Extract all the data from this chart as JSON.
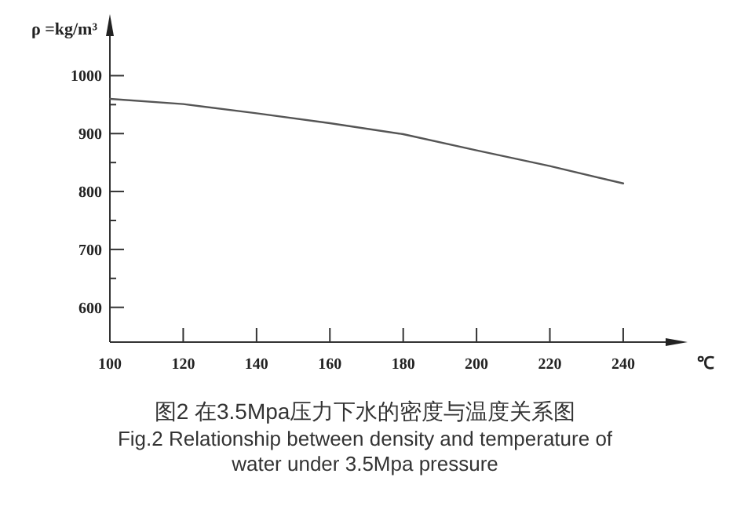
{
  "chart_data": {
    "type": "line",
    "xlabel": "℃",
    "ylabel": "ρ =kg/m³",
    "x": [
      100,
      120,
      140,
      160,
      180,
      200,
      220,
      240
    ],
    "series": [
      {
        "color": "#555555",
        "values": [
          960,
          951,
          935,
          918,
          899,
          871,
          844,
          814
        ]
      }
    ],
    "xlim": [
      100,
      255
    ],
    "ylim": [
      540,
      1090
    ],
    "xticks": [
      100,
      120,
      140,
      160,
      180,
      200,
      220,
      240
    ],
    "yticks": [
      600,
      {
        "value": 650,
        "label": null
      },
      700,
      {
        "value": 750,
        "label": null
      },
      800,
      {
        "value": 850,
        "label": null
      },
      900,
      {
        "value": 950,
        "label": null
      },
      1000
    ],
    "grid": false,
    "marker": "none",
    "line_style": "solid",
    "annotations": [
      "图2 在3.5Mpa压力下水的密度与温度关系图",
      "Fig.2 Relationship between density and temperature of water under 3.5Mpa pressure"
    ]
  }
}
